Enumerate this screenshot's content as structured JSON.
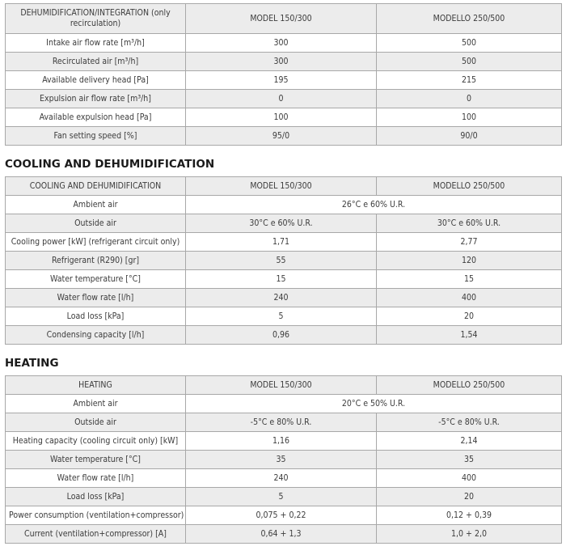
{
  "table1": {
    "header": [
      "DEHUMIDIFICATION/INTEGRATION (only recirculation)",
      "MODEL 150/300",
      "MODELLO 250/500"
    ],
    "rows": [
      {
        "label": "Intake air flow rate [m³/h]",
        "v1": "300",
        "v2": "500"
      },
      {
        "label": "Recirculated air [m³/h]",
        "v1": "300",
        "v2": "500"
      },
      {
        "label": "Available delivery head [Pa]",
        "v1": "195",
        "v2": "215"
      },
      {
        "label": "Expulsion air flow rate [m³/h]",
        "v1": "0",
        "v2": "0"
      },
      {
        "label": "Available expulsion head [Pa]",
        "v1": "100",
        "v2": "100"
      },
      {
        "label": "Fan setting speed [%]",
        "v1": "95/0",
        "v2": "90/0"
      }
    ]
  },
  "section2_title": "COOLING AND DEHUMIDIFICATION",
  "table2": {
    "header": [
      "COOLING AND DEHUMIDIFICATION",
      "MODEL 150/300",
      "MODELLO 250/500"
    ],
    "ambient": {
      "label": "Ambient air",
      "value": "26°C e 60% U.R."
    },
    "rows": [
      {
        "label": "Outside air",
        "v1": "30°C e 60% U.R.",
        "v2": "30°C e 60% U.R."
      },
      {
        "label": "Cooling power [kW] (refrigerant circuit only)",
        "v1": "1,71",
        "v2": "2,77"
      },
      {
        "label": "Refrigerant (R290) [gr]",
        "v1": "55",
        "v2": "120"
      },
      {
        "label": "Water temperature [°C]",
        "v1": "15",
        "v2": "15"
      },
      {
        "label": "Water flow rate [l/h]",
        "v1": "240",
        "v2": "400"
      },
      {
        "label": "Load loss [kPa]",
        "v1": "5",
        "v2": "20"
      },
      {
        "label": "Condensing capacity [l/h]",
        "v1": "0,96",
        "v2": "1,54"
      }
    ]
  },
  "section3_title": "HEATING",
  "table3": {
    "header": [
      "HEATING",
      "MODEL 150/300",
      "MODELLO 250/500"
    ],
    "ambient": {
      "label": "Ambient air",
      "value": "20°C e 50% U.R."
    },
    "rows": [
      {
        "label": "Outside air",
        "v1": "-5°C e 80% U.R.",
        "v2": "-5°C e 80% U.R."
      },
      {
        "label": "Heating capacity (cooling circuit only) [kW]",
        "v1": "1,16",
        "v2": "2,14"
      },
      {
        "label": "Water temperature [°C]",
        "v1": "35",
        "v2": "35"
      },
      {
        "label": "Water flow rate [l/h]",
        "v1": "240",
        "v2": "400"
      },
      {
        "label": "Load loss [kPa]",
        "v1": "5",
        "v2": "20"
      },
      {
        "label": "Power consumption (ventilation+compressor) [kW]",
        "v1": "0,075 + 0,22",
        "v2": "0,12 + 0,39"
      },
      {
        "label": "Current (ventilation+compressor) [A]",
        "v1": "0,64 + 1,3",
        "v2": "1,0 + 2,0"
      }
    ]
  }
}
